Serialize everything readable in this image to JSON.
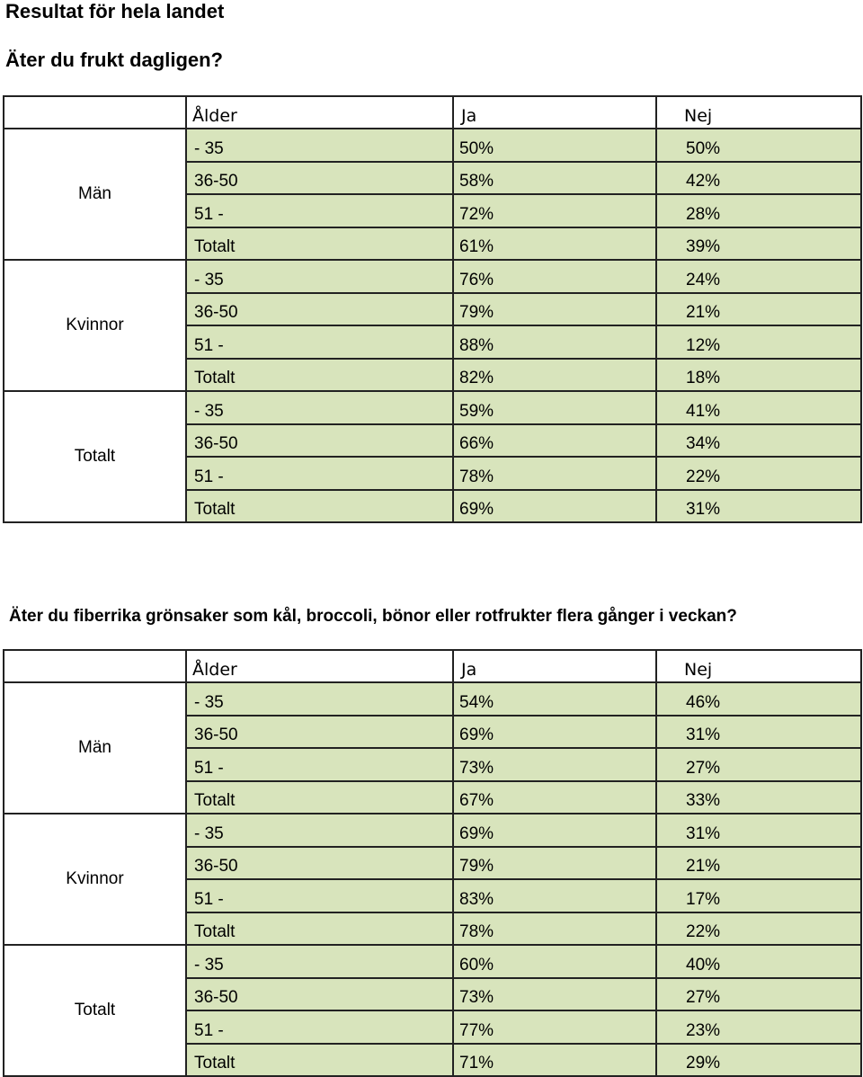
{
  "page_title": "Resultat för hela landet",
  "sections": [
    {
      "question": "Äter du frukt dagligen?",
      "headers": {
        "age": "Ålder",
        "yes": "Ja",
        "no": "Nej"
      },
      "groups": [
        {
          "name": "Män",
          "rows": [
            {
              "age": "- 35",
              "yes": "50%",
              "no": "50%"
            },
            {
              "age": "36-50",
              "yes": "58%",
              "no": "42%"
            },
            {
              "age": "51 -",
              "yes": "72%",
              "no": "28%"
            },
            {
              "age": "Totalt",
              "yes": "61%",
              "no": "39%"
            }
          ]
        },
        {
          "name": "Kvinnor",
          "rows": [
            {
              "age": "- 35",
              "yes": "76%",
              "no": "24%"
            },
            {
              "age": "36-50",
              "yes": "79%",
              "no": "21%"
            },
            {
              "age": "51 -",
              "yes": "88%",
              "no": "12%"
            },
            {
              "age": "Totalt",
              "yes": "82%",
              "no": "18%"
            }
          ]
        },
        {
          "name": "Totalt",
          "rows": [
            {
              "age": "- 35",
              "yes": "59%",
              "no": "41%"
            },
            {
              "age": "36-50",
              "yes": "66%",
              "no": "34%"
            },
            {
              "age": "51 -",
              "yes": "78%",
              "no": "22%"
            },
            {
              "age": "Totalt",
              "yes": "69%",
              "no": "31%"
            }
          ]
        }
      ]
    },
    {
      "question": "Äter du fiberrika grönsaker som kål, broccoli, bönor eller rotfrukter flera gånger i veckan?",
      "headers": {
        "age": "Ålder",
        "yes": "Ja",
        "no": "Nej"
      },
      "groups": [
        {
          "name": "Män",
          "rows": [
            {
              "age": "- 35",
              "yes": "54%",
              "no": "46%"
            },
            {
              "age": "36-50",
              "yes": "69%",
              "no": "31%"
            },
            {
              "age": "51 -",
              "yes": "73%",
              "no": "27%"
            },
            {
              "age": "Totalt",
              "yes": "67%",
              "no": "33%"
            }
          ]
        },
        {
          "name": "Kvinnor",
          "rows": [
            {
              "age": "- 35",
              "yes": "69%",
              "no": "31%"
            },
            {
              "age": "36-50",
              "yes": "79%",
              "no": "21%"
            },
            {
              "age": "51 -",
              "yes": "83%",
              "no": "17%"
            },
            {
              "age": "Totalt",
              "yes": "78%",
              "no": "22%"
            }
          ]
        },
        {
          "name": "Totalt",
          "rows": [
            {
              "age": "- 35",
              "yes": "60%",
              "no": "40%"
            },
            {
              "age": "36-50",
              "yes": "73%",
              "no": "27%"
            },
            {
              "age": "51 -",
              "yes": "77%",
              "no": "23%"
            },
            {
              "age": "Totalt",
              "yes": "71%",
              "no": "29%"
            }
          ]
        }
      ]
    }
  ]
}
